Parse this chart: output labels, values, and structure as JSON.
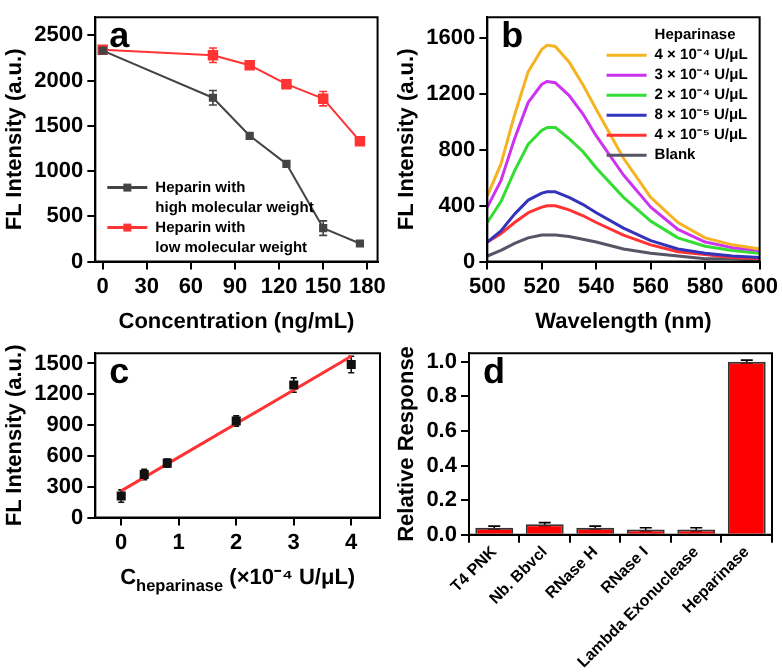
{
  "chart_data": [
    {
      "type": "line",
      "annotations": [
        "a"
      ],
      "xlabel": "Concentration (ng/mL)",
      "ylabel": "FL Intensity (a.u.)",
      "x": [
        0,
        75,
        100,
        125,
        150,
        175
      ],
      "xlim": [
        -5,
        187
      ],
      "xticks": [
        0,
        30,
        60,
        90,
        120,
        150,
        180
      ],
      "ylim": [
        0,
        2700
      ],
      "yticks": [
        0,
        500,
        1000,
        1500,
        2000,
        2500
      ],
      "marker": "square",
      "legend": "bottom left",
      "grid": false,
      "series": [
        {
          "name": "Heparin with\nhigh molecular weight",
          "color": "#444444",
          "values": [
            2330,
            1810,
            1390,
            1080,
            370,
            200
          ],
          "errors": [
            null,
            80,
            null,
            null,
            80,
            null
          ]
        },
        {
          "name": "Heparin with\nlow molecular weight",
          "color": "#ff3333",
          "values": [
            2340,
            2280,
            2170,
            1960,
            1800,
            1330
          ],
          "errors": [
            null,
            80,
            null,
            null,
            80,
            null
          ]
        }
      ]
    },
    {
      "type": "line",
      "annotations": [
        "b"
      ],
      "xlabel": "Wavelength (nm)",
      "ylabel": "FL Intensity (a.u.)",
      "legend_title": "Heparinase",
      "x": [
        500,
        505,
        510,
        515,
        520,
        522,
        525,
        530,
        535,
        540,
        550,
        560,
        570,
        580,
        590,
        600
      ],
      "xlim": [
        500,
        600
      ],
      "xticks": [
        500,
        520,
        540,
        560,
        580,
        600
      ],
      "ylim": [
        0,
        1750
      ],
      "yticks": [
        0,
        400,
        800,
        1200,
        1600
      ],
      "marker": "none",
      "legend": "top right",
      "grid": false,
      "series": [
        {
          "name": "4 × 10⁻⁴ U/μL",
          "color": "#f5b321",
          "values": [
            470,
            700,
            1050,
            1360,
            1520,
            1550,
            1540,
            1430,
            1270,
            1090,
            740,
            460,
            280,
            170,
            120,
            90
          ]
        },
        {
          "name": "3 × 10⁻⁴ U/μL",
          "color": "#cc33ee",
          "values": [
            390,
            580,
            880,
            1140,
            1270,
            1290,
            1280,
            1190,
            1060,
            900,
            620,
            390,
            230,
            140,
            100,
            80
          ]
        },
        {
          "name": "2 × 10⁻⁴ U/μL",
          "color": "#33dd33",
          "values": [
            280,
            430,
            650,
            840,
            940,
            960,
            960,
            880,
            790,
            670,
            460,
            290,
            170,
            110,
            80,
            60
          ]
        },
        {
          "name": "8 × 10⁻⁵ U/μL",
          "color": "#3333bb",
          "values": [
            140,
            220,
            340,
            440,
            490,
            500,
            500,
            460,
            410,
            350,
            240,
            150,
            90,
            60,
            40,
            30
          ]
        },
        {
          "name": "4 × 10⁻⁵ U/μL",
          "color": "#ff3333",
          "values": [
            140,
            200,
            280,
            350,
            390,
            400,
            400,
            370,
            330,
            280,
            190,
            120,
            70,
            50,
            30,
            20
          ]
        },
        {
          "name": "Blank",
          "color": "#555566",
          "values": [
            40,
            80,
            130,
            170,
            190,
            190,
            190,
            180,
            160,
            140,
            90,
            60,
            40,
            20,
            20,
            10
          ]
        }
      ]
    },
    {
      "type": "scatter",
      "annotations": [
        "c"
      ],
      "xlabel": "C$_{heparinase}$ (×10⁻⁴ U/μL)",
      "ylabel": "FL Intensity (a.u.)",
      "xlim": [
        -0.45,
        4.5
      ],
      "xticks": [
        0,
        1,
        2,
        3,
        4
      ],
      "ylim": [
        0,
        1600
      ],
      "yticks": [
        0,
        300,
        600,
        900,
        1200,
        1500
      ],
      "grid": false,
      "series": [
        {
          "color": "#111111",
          "marker": "square",
          "x": [
            0,
            0.4,
            0.8,
            2,
            3,
            4
          ],
          "values": [
            210,
            420,
            530,
            940,
            1290,
            1490
          ],
          "errors": [
            60,
            50,
            40,
            50,
            70,
            80
          ]
        },
        {
          "type": "line",
          "color": "#ff3333",
          "marker": "none",
          "x": [
            0,
            4
          ],
          "values": [
            260,
            1570
          ]
        }
      ]
    },
    {
      "type": "bar",
      "annotations": [
        "d"
      ],
      "ylabel": "Relative Response",
      "categories": [
        "T4 PNK",
        "Nb. Bbvcl",
        "RNase H",
        "RNase I",
        "Lambda Exonuclease",
        "Heparinase"
      ],
      "values": [
        0.04,
        0.06,
        0.04,
        0.03,
        0.03,
        1.0
      ],
      "errors": [
        0.01,
        0.01,
        0.01,
        0.01,
        0.01,
        0.01
      ],
      "color": "#ff0000",
      "ylim": [
        0,
        1.05
      ],
      "yticks": [
        {
          "value": 0,
          "label": "0.0"
        },
        {
          "value": 0.2,
          "label": "0.2"
        },
        {
          "value": 0.4,
          "label": "0.4"
        },
        {
          "value": 0.6,
          "label": "0.6"
        },
        {
          "value": 0.8,
          "label": "0.8"
        },
        {
          "value": 1,
          "label": "1.0"
        }
      ],
      "grid": false
    }
  ]
}
